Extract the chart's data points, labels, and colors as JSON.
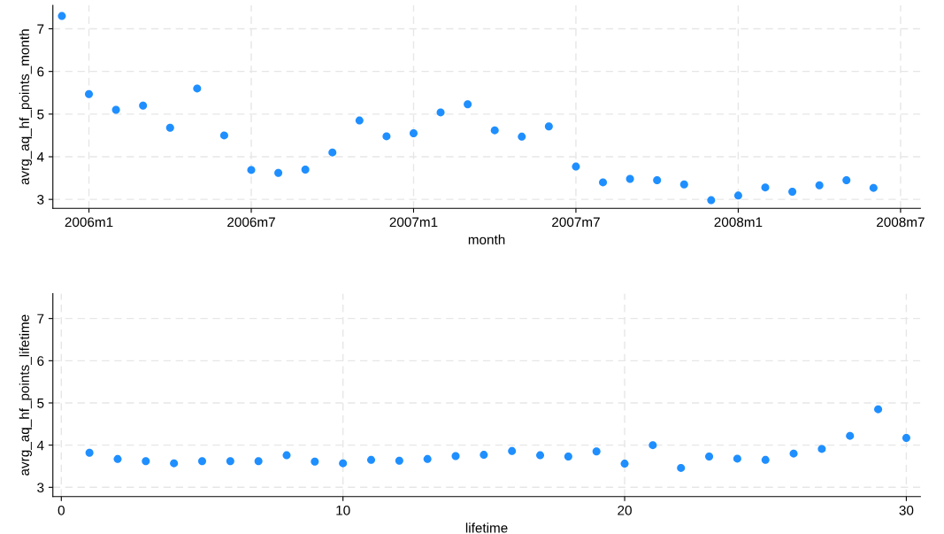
{
  "chart_data": [
    {
      "type": "scatter",
      "xlabel": "month",
      "ylabel": "avrg_aq_hf_points_month",
      "color": "#1f8fff",
      "marker": "circle",
      "grid": true,
      "x": [
        "2005-12",
        "2006-01",
        "2006-02",
        "2006-03",
        "2006-04",
        "2006-05",
        "2006-06",
        "2006-07",
        "2006-08",
        "2006-09",
        "2006-10",
        "2006-11",
        "2006-12",
        "2007-01",
        "2007-02",
        "2007-03",
        "2007-04",
        "2007-05",
        "2007-06",
        "2007-07",
        "2007-08",
        "2007-09",
        "2007-10",
        "2007-11",
        "2007-12",
        "2008-01",
        "2008-02",
        "2008-03",
        "2008-04",
        "2008-05",
        "2008-06"
      ],
      "values": [
        7.3,
        5.47,
        5.1,
        5.2,
        4.68,
        5.6,
        4.5,
        3.69,
        3.62,
        3.7,
        4.1,
        4.85,
        4.48,
        4.55,
        5.04,
        5.23,
        4.62,
        4.47,
        4.71,
        3.77,
        3.4,
        3.48,
        3.45,
        3.35,
        2.98,
        3.09,
        3.28,
        3.18,
        3.33,
        3.45,
        3.27
      ],
      "xlim": [
        "2005-11-21",
        "2008-07-23"
      ],
      "xticks": [
        {
          "value": "2006-01",
          "label": "2006m1"
        },
        {
          "value": "2006-07",
          "label": "2006m7"
        },
        {
          "value": "2007-01",
          "label": "2007m1"
        },
        {
          "value": "2007-07",
          "label": "2007m7"
        },
        {
          "value": "2008-01",
          "label": "2008m1"
        },
        {
          "value": "2008-07",
          "label": "2008m7"
        }
      ],
      "ylim": [
        2.79,
        7.55
      ],
      "yticks": [
        3,
        4,
        5,
        6,
        7
      ]
    },
    {
      "type": "scatter",
      "xlabel": "lifetime",
      "ylabel": "avrg_aq_hf_points_lifetime",
      "color": "#1f8fff",
      "marker": "circle",
      "grid": true,
      "x": [
        1,
        2,
        3,
        4,
        5,
        6,
        7,
        8,
        9,
        10,
        11,
        12,
        13,
        14,
        15,
        16,
        17,
        18,
        19,
        20,
        21,
        22,
        23,
        24,
        25,
        26,
        27,
        28,
        29,
        30
      ],
      "values": [
        3.82,
        3.67,
        3.62,
        3.57,
        3.62,
        3.62,
        3.62,
        3.76,
        3.61,
        3.57,
        3.65,
        3.63,
        3.67,
        3.74,
        3.77,
        3.86,
        3.76,
        3.73,
        3.85,
        3.56,
        4.0,
        3.46,
        3.73,
        3.68,
        3.65,
        3.8,
        3.91,
        4.22,
        4.85,
        4.17
      ],
      "xlim": [
        -0.3,
        30.5
      ],
      "xticks": [
        0,
        10,
        20,
        30
      ],
      "ylim": [
        2.78,
        7.59
      ],
      "yticks": [
        3,
        4,
        5,
        6,
        7
      ]
    }
  ]
}
